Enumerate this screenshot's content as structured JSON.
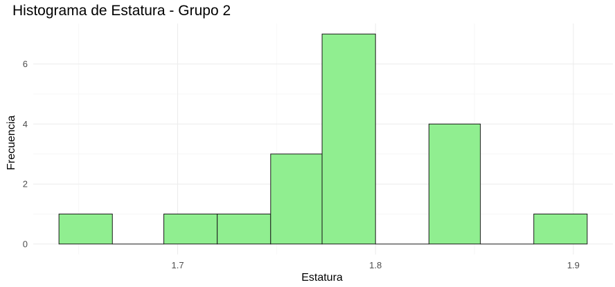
{
  "chart_data": {
    "type": "bar",
    "title": "Histograma de Estatura - Grupo 2",
    "xlabel": "Estatura",
    "ylabel": "Frecuencia",
    "bins": [
      {
        "start": 1.64,
        "end": 1.667,
        "count": 1
      },
      {
        "start": 1.667,
        "end": 1.693,
        "count": 0
      },
      {
        "start": 1.693,
        "end": 1.72,
        "count": 1
      },
      {
        "start": 1.72,
        "end": 1.747,
        "count": 1
      },
      {
        "start": 1.747,
        "end": 1.773,
        "count": 3
      },
      {
        "start": 1.773,
        "end": 1.8,
        "count": 7
      },
      {
        "start": 1.8,
        "end": 1.827,
        "count": 0
      },
      {
        "start": 1.827,
        "end": 1.853,
        "count": 4
      },
      {
        "start": 1.853,
        "end": 1.88,
        "count": 0
      },
      {
        "start": 1.88,
        "end": 1.907,
        "count": 1
      }
    ],
    "xlim": [
      1.627,
      1.92
    ],
    "ylim": [
      -0.35,
      7.35
    ],
    "xticks": [
      1.7,
      1.8,
      1.9
    ],
    "yticks": [
      0,
      2,
      4,
      6
    ],
    "grid": true,
    "colors": {
      "fill": "#90EE90",
      "stroke": "#1a1a1a",
      "grid": "#ebebeb",
      "grid_minor": "#f5f5f5"
    }
  }
}
